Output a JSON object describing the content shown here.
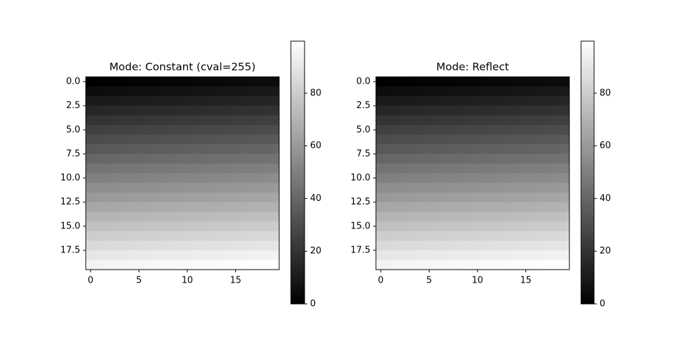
{
  "chart_data": [
    {
      "type": "heatmap",
      "title": "Mode: Constant (cval=255)",
      "colormap": "gray",
      "xlim": [
        -0.5,
        19.5
      ],
      "ylim": [
        19.5,
        -0.5
      ],
      "xticks": [
        0,
        5,
        10,
        15
      ],
      "yticks": [
        {
          "value": 0,
          "label": "0.0"
        },
        2.5,
        {
          "value": 5,
          "label": "5.0"
        },
        7.5,
        {
          "value": 10,
          "label": "10.0"
        },
        12.5,
        {
          "value": 15,
          "label": "15.0"
        },
        17.5
      ],
      "colorbar": {
        "lim": [
          0,
          99.75
        ],
        "ticks": [
          0,
          20,
          40,
          60,
          80
        ]
      },
      "z": [
        [
          0,
          0.25,
          0.5,
          0.75,
          1,
          1.25,
          1.5,
          1.75,
          2,
          2.25,
          2.5,
          2.75,
          3,
          3.25,
          3.5,
          3.75,
          4,
          4.25,
          4.5,
          4.75
        ],
        [
          5,
          5.25,
          5.5,
          5.75,
          6,
          6.25,
          6.5,
          6.75,
          7,
          7.25,
          7.5,
          7.75,
          8,
          8.25,
          8.5,
          8.75,
          9,
          9.25,
          9.5,
          9.75
        ],
        [
          10,
          10.25,
          10.5,
          10.75,
          11,
          11.25,
          11.5,
          11.75,
          12,
          12.25,
          12.5,
          12.75,
          13,
          13.25,
          13.5,
          13.75,
          14,
          14.25,
          14.5,
          14.75
        ],
        [
          15,
          15.25,
          15.5,
          15.75,
          16,
          16.25,
          16.5,
          16.75,
          17,
          17.25,
          17.5,
          17.75,
          18,
          18.25,
          18.5,
          18.75,
          19,
          19.25,
          19.5,
          19.75
        ],
        [
          20,
          20.25,
          20.5,
          20.75,
          21,
          21.25,
          21.5,
          21.75,
          22,
          22.25,
          22.5,
          22.75,
          23,
          23.25,
          23.5,
          23.75,
          24,
          24.25,
          24.5,
          24.75
        ],
        [
          25,
          25.25,
          25.5,
          25.75,
          26,
          26.25,
          26.5,
          26.75,
          27,
          27.25,
          27.5,
          27.75,
          28,
          28.25,
          28.5,
          28.75,
          29,
          29.25,
          29.5,
          29.75
        ],
        [
          30,
          30.25,
          30.5,
          30.75,
          31,
          31.25,
          31.5,
          31.75,
          32,
          32.25,
          32.5,
          32.75,
          33,
          33.25,
          33.5,
          33.75,
          34,
          34.25,
          34.5,
          34.75
        ],
        [
          35,
          35.25,
          35.5,
          35.75,
          36,
          36.25,
          36.5,
          36.75,
          37,
          37.25,
          37.5,
          37.75,
          38,
          38.25,
          38.5,
          38.75,
          39,
          39.25,
          39.5,
          39.75
        ],
        [
          40,
          40.25,
          40.5,
          40.75,
          41,
          41.25,
          41.5,
          41.75,
          42,
          42.25,
          42.5,
          42.75,
          43,
          43.25,
          43.5,
          43.75,
          44,
          44.25,
          44.5,
          44.75
        ],
        [
          45,
          45.25,
          45.5,
          45.75,
          46,
          46.25,
          46.5,
          46.75,
          47,
          47.25,
          47.5,
          47.75,
          48,
          48.25,
          48.5,
          48.75,
          49,
          49.25,
          49.5,
          49.75
        ],
        [
          50,
          50.25,
          50.5,
          50.75,
          51,
          51.25,
          51.5,
          51.75,
          52,
          52.25,
          52.5,
          52.75,
          53,
          53.25,
          53.5,
          53.75,
          54,
          54.25,
          54.5,
          54.75
        ],
        [
          55,
          55.25,
          55.5,
          55.75,
          56,
          56.25,
          56.5,
          56.75,
          57,
          57.25,
          57.5,
          57.75,
          58,
          58.25,
          58.5,
          58.75,
          59,
          59.25,
          59.5,
          59.75
        ],
        [
          60,
          60.25,
          60.5,
          60.75,
          61,
          61.25,
          61.5,
          61.75,
          62,
          62.25,
          62.5,
          62.75,
          63,
          63.25,
          63.5,
          63.75,
          64,
          64.25,
          64.5,
          64.75
        ],
        [
          65,
          65.25,
          65.5,
          65.75,
          66,
          66.25,
          66.5,
          66.75,
          67,
          67.25,
          67.5,
          67.75,
          68,
          68.25,
          68.5,
          68.75,
          69,
          69.25,
          69.5,
          69.75
        ],
        [
          70,
          70.25,
          70.5,
          70.75,
          71,
          71.25,
          71.5,
          71.75,
          72,
          72.25,
          72.5,
          72.75,
          73,
          73.25,
          73.5,
          73.75,
          74,
          74.25,
          74.5,
          74.75
        ],
        [
          75,
          75.25,
          75.5,
          75.75,
          76,
          76.25,
          76.5,
          76.75,
          77,
          77.25,
          77.5,
          77.75,
          78,
          78.25,
          78.5,
          78.75,
          79,
          79.25,
          79.5,
          79.75
        ],
        [
          80,
          80.25,
          80.5,
          80.75,
          81,
          81.25,
          81.5,
          81.75,
          82,
          82.25,
          82.5,
          82.75,
          83,
          83.25,
          83.5,
          83.75,
          84,
          84.25,
          84.5,
          84.75
        ],
        [
          85,
          85.25,
          85.5,
          85.75,
          86,
          86.25,
          86.5,
          86.75,
          87,
          87.25,
          87.5,
          87.75,
          88,
          88.25,
          88.5,
          88.75,
          89,
          89.25,
          89.5,
          89.75
        ],
        [
          90,
          90.25,
          90.5,
          90.75,
          91,
          91.25,
          91.5,
          91.75,
          92,
          92.25,
          92.5,
          92.75,
          93,
          93.25,
          93.5,
          93.75,
          94,
          94.25,
          94.5,
          94.75
        ],
        [
          95,
          95.25,
          95.5,
          95.75,
          96,
          96.25,
          96.5,
          96.75,
          97,
          97.25,
          97.5,
          97.75,
          98,
          98.25,
          98.5,
          98.75,
          99,
          99.25,
          99.5,
          99.75
        ]
      ]
    },
    {
      "type": "heatmap",
      "title": "Mode: Reflect",
      "colormap": "gray",
      "xlim": [
        -0.5,
        19.5
      ],
      "ylim": [
        19.5,
        -0.5
      ],
      "xticks": [
        0,
        5,
        10,
        15
      ],
      "yticks": [
        {
          "value": 0,
          "label": "0.0"
        },
        2.5,
        {
          "value": 5,
          "label": "5.0"
        },
        7.5,
        {
          "value": 10,
          "label": "10.0"
        },
        12.5,
        {
          "value": 15,
          "label": "15.0"
        },
        17.5
      ],
      "colorbar": {
        "lim": [
          0,
          99.75
        ],
        "ticks": [
          0,
          20,
          40,
          60,
          80
        ]
      },
      "z": [
        [
          0,
          0.25,
          0.5,
          0.75,
          1,
          1.25,
          1.5,
          1.75,
          2,
          2.25,
          2.5,
          2.75,
          3,
          3.25,
          3.5,
          3.75,
          4,
          4.25,
          4.5,
          4.75
        ],
        [
          5,
          5.25,
          5.5,
          5.75,
          6,
          6.25,
          6.5,
          6.75,
          7,
          7.25,
          7.5,
          7.75,
          8,
          8.25,
          8.5,
          8.75,
          9,
          9.25,
          9.5,
          9.75
        ],
        [
          10,
          10.25,
          10.5,
          10.75,
          11,
          11.25,
          11.5,
          11.75,
          12,
          12.25,
          12.5,
          12.75,
          13,
          13.25,
          13.5,
          13.75,
          14,
          14.25,
          14.5,
          14.75
        ],
        [
          15,
          15.25,
          15.5,
          15.75,
          16,
          16.25,
          16.5,
          16.75,
          17,
          17.25,
          17.5,
          17.75,
          18,
          18.25,
          18.5,
          18.75,
          19,
          19.25,
          19.5,
          19.75
        ],
        [
          20,
          20.25,
          20.5,
          20.75,
          21,
          21.25,
          21.5,
          21.75,
          22,
          22.25,
          22.5,
          22.75,
          23,
          23.25,
          23.5,
          23.75,
          24,
          24.25,
          24.5,
          24.75
        ],
        [
          25,
          25.25,
          25.5,
          25.75,
          26,
          26.25,
          26.5,
          26.75,
          27,
          27.25,
          27.5,
          27.75,
          28,
          28.25,
          28.5,
          28.75,
          29,
          29.25,
          29.5,
          29.75
        ],
        [
          30,
          30.25,
          30.5,
          30.75,
          31,
          31.25,
          31.5,
          31.75,
          32,
          32.25,
          32.5,
          32.75,
          33,
          33.25,
          33.5,
          33.75,
          34,
          34.25,
          34.5,
          34.75
        ],
        [
          35,
          35.25,
          35.5,
          35.75,
          36,
          36.25,
          36.5,
          36.75,
          37,
          37.25,
          37.5,
          37.75,
          38,
          38.25,
          38.5,
          38.75,
          39,
          39.25,
          39.5,
          39.75
        ],
        [
          40,
          40.25,
          40.5,
          40.75,
          41,
          41.25,
          41.5,
          41.75,
          42,
          42.25,
          42.5,
          42.75,
          43,
          43.25,
          43.5,
          43.75,
          44,
          44.25,
          44.5,
          44.75
        ],
        [
          45,
          45.25,
          45.5,
          45.75,
          46,
          46.25,
          46.5,
          46.75,
          47,
          47.25,
          47.5,
          47.75,
          48,
          48.25,
          48.5,
          48.75,
          49,
          49.25,
          49.5,
          49.75
        ],
        [
          50,
          50.25,
          50.5,
          50.75,
          51,
          51.25,
          51.5,
          51.75,
          52,
          52.25,
          52.5,
          52.75,
          53,
          53.25,
          53.5,
          53.75,
          54,
          54.25,
          54.5,
          54.75
        ],
        [
          55,
          55.25,
          55.5,
          55.75,
          56,
          56.25,
          56.5,
          56.75,
          57,
          57.25,
          57.5,
          57.75,
          58,
          58.25,
          58.5,
          58.75,
          59,
          59.25,
          59.5,
          59.75
        ],
        [
          60,
          60.25,
          60.5,
          60.75,
          61,
          61.25,
          61.5,
          61.75,
          62,
          62.25,
          62.5,
          62.75,
          63,
          63.25,
          63.5,
          63.75,
          64,
          64.25,
          64.5,
          64.75
        ],
        [
          65,
          65.25,
          65.5,
          65.75,
          66,
          66.25,
          66.5,
          66.75,
          67,
          67.25,
          67.5,
          67.75,
          68,
          68.25,
          68.5,
          68.75,
          69,
          69.25,
          69.5,
          69.75
        ],
        [
          70,
          70.25,
          70.5,
          70.75,
          71,
          71.25,
          71.5,
          71.75,
          72,
          72.25,
          72.5,
          72.75,
          73,
          73.25,
          73.5,
          73.75,
          74,
          74.25,
          74.5,
          74.75
        ],
        [
          75,
          75.25,
          75.5,
          75.75,
          76,
          76.25,
          76.5,
          76.75,
          77,
          77.25,
          77.5,
          77.75,
          78,
          78.25,
          78.5,
          78.75,
          79,
          79.25,
          79.5,
          79.75
        ],
        [
          80,
          80.25,
          80.5,
          80.75,
          81,
          81.25,
          81.5,
          81.75,
          82,
          82.25,
          82.5,
          82.75,
          83,
          83.25,
          83.5,
          83.75,
          84,
          84.25,
          84.5,
          84.75
        ],
        [
          85,
          85.25,
          85.5,
          85.75,
          86,
          86.25,
          86.5,
          86.75,
          87,
          87.25,
          87.5,
          87.75,
          88,
          88.25,
          88.5,
          88.75,
          89,
          89.25,
          89.5,
          89.75
        ],
        [
          90,
          90.25,
          90.5,
          90.75,
          91,
          91.25,
          91.5,
          91.75,
          92,
          92.25,
          92.5,
          92.75,
          93,
          93.25,
          93.5,
          93.75,
          94,
          94.25,
          94.5,
          94.75
        ],
        [
          95,
          95.25,
          95.5,
          95.75,
          96,
          96.25,
          96.5,
          96.75,
          97,
          97.25,
          97.5,
          97.75,
          98,
          98.25,
          98.5,
          98.75,
          99,
          99.25,
          99.5,
          99.75
        ]
      ]
    }
  ]
}
